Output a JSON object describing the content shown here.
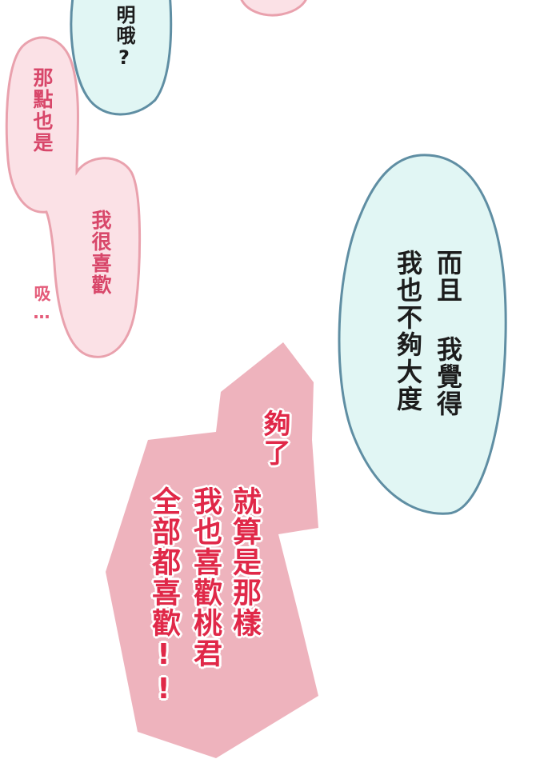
{
  "colors": {
    "teal_fill": "#e1f6f4",
    "teal_stroke": "#5f8ea3",
    "pink_fill": "#fbe1e6",
    "pink_stroke": "#e9a1ad",
    "shout_fill": "#eeb3bd",
    "dark_text": "#1c1c1c",
    "pink_text": "#d8476a",
    "red_text": "#e02848"
  },
  "bubbles": {
    "top_teal": {
      "line1": "明哦?"
    },
    "left_pink_top": {
      "line1": "那點也是"
    },
    "left_pink_bottom": {
      "line1": "我很喜歡"
    },
    "sob": {
      "text": "吸…"
    },
    "right_teal": {
      "line1": "而且 我覺得",
      "line2": "我也不夠大度"
    },
    "shout": {
      "line1": "夠了",
      "line2": "就算是那樣",
      "line3": "我也喜歡桃君",
      "line4": "全部都喜歡!!"
    }
  }
}
